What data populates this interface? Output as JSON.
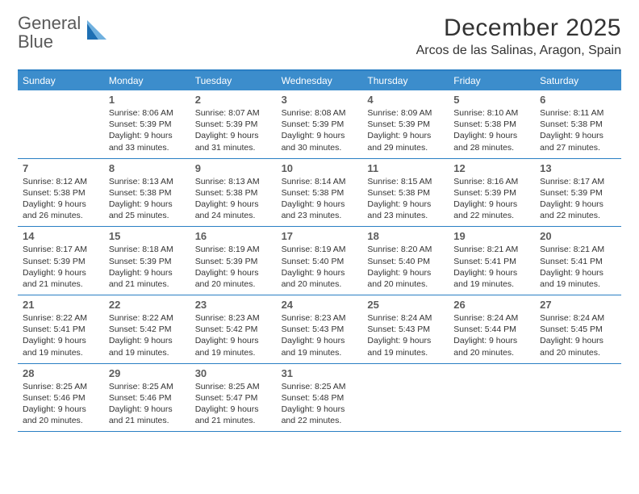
{
  "brand": {
    "word1": "General",
    "word2": "Blue",
    "mark_color_light": "#6fb0df",
    "mark_color_dark": "#1d6fb3"
  },
  "header": {
    "title": "December 2025",
    "location": "Arcos de las Salinas, Aragon, Spain"
  },
  "colors": {
    "header_bar": "#3c8dcc",
    "rule": "#2a7fc4",
    "text": "#333333",
    "daynum": "#5c5c5c",
    "bg": "#ffffff"
  },
  "weekdays": [
    "Sunday",
    "Monday",
    "Tuesday",
    "Wednesday",
    "Thursday",
    "Friday",
    "Saturday"
  ],
  "weeks": [
    [
      {
        "n": "",
        "sunrise": "",
        "sunset": "",
        "daylight": ""
      },
      {
        "n": "1",
        "sunrise": "Sunrise: 8:06 AM",
        "sunset": "Sunset: 5:39 PM",
        "daylight": "Daylight: 9 hours and 33 minutes."
      },
      {
        "n": "2",
        "sunrise": "Sunrise: 8:07 AM",
        "sunset": "Sunset: 5:39 PM",
        "daylight": "Daylight: 9 hours and 31 minutes."
      },
      {
        "n": "3",
        "sunrise": "Sunrise: 8:08 AM",
        "sunset": "Sunset: 5:39 PM",
        "daylight": "Daylight: 9 hours and 30 minutes."
      },
      {
        "n": "4",
        "sunrise": "Sunrise: 8:09 AM",
        "sunset": "Sunset: 5:39 PM",
        "daylight": "Daylight: 9 hours and 29 minutes."
      },
      {
        "n": "5",
        "sunrise": "Sunrise: 8:10 AM",
        "sunset": "Sunset: 5:38 PM",
        "daylight": "Daylight: 9 hours and 28 minutes."
      },
      {
        "n": "6",
        "sunrise": "Sunrise: 8:11 AM",
        "sunset": "Sunset: 5:38 PM",
        "daylight": "Daylight: 9 hours and 27 minutes."
      }
    ],
    [
      {
        "n": "7",
        "sunrise": "Sunrise: 8:12 AM",
        "sunset": "Sunset: 5:38 PM",
        "daylight": "Daylight: 9 hours and 26 minutes."
      },
      {
        "n": "8",
        "sunrise": "Sunrise: 8:13 AM",
        "sunset": "Sunset: 5:38 PM",
        "daylight": "Daylight: 9 hours and 25 minutes."
      },
      {
        "n": "9",
        "sunrise": "Sunrise: 8:13 AM",
        "sunset": "Sunset: 5:38 PM",
        "daylight": "Daylight: 9 hours and 24 minutes."
      },
      {
        "n": "10",
        "sunrise": "Sunrise: 8:14 AM",
        "sunset": "Sunset: 5:38 PM",
        "daylight": "Daylight: 9 hours and 23 minutes."
      },
      {
        "n": "11",
        "sunrise": "Sunrise: 8:15 AM",
        "sunset": "Sunset: 5:38 PM",
        "daylight": "Daylight: 9 hours and 23 minutes."
      },
      {
        "n": "12",
        "sunrise": "Sunrise: 8:16 AM",
        "sunset": "Sunset: 5:39 PM",
        "daylight": "Daylight: 9 hours and 22 minutes."
      },
      {
        "n": "13",
        "sunrise": "Sunrise: 8:17 AM",
        "sunset": "Sunset: 5:39 PM",
        "daylight": "Daylight: 9 hours and 22 minutes."
      }
    ],
    [
      {
        "n": "14",
        "sunrise": "Sunrise: 8:17 AM",
        "sunset": "Sunset: 5:39 PM",
        "daylight": "Daylight: 9 hours and 21 minutes."
      },
      {
        "n": "15",
        "sunrise": "Sunrise: 8:18 AM",
        "sunset": "Sunset: 5:39 PM",
        "daylight": "Daylight: 9 hours and 21 minutes."
      },
      {
        "n": "16",
        "sunrise": "Sunrise: 8:19 AM",
        "sunset": "Sunset: 5:39 PM",
        "daylight": "Daylight: 9 hours and 20 minutes."
      },
      {
        "n": "17",
        "sunrise": "Sunrise: 8:19 AM",
        "sunset": "Sunset: 5:40 PM",
        "daylight": "Daylight: 9 hours and 20 minutes."
      },
      {
        "n": "18",
        "sunrise": "Sunrise: 8:20 AM",
        "sunset": "Sunset: 5:40 PM",
        "daylight": "Daylight: 9 hours and 20 minutes."
      },
      {
        "n": "19",
        "sunrise": "Sunrise: 8:21 AM",
        "sunset": "Sunset: 5:41 PM",
        "daylight": "Daylight: 9 hours and 19 minutes."
      },
      {
        "n": "20",
        "sunrise": "Sunrise: 8:21 AM",
        "sunset": "Sunset: 5:41 PM",
        "daylight": "Daylight: 9 hours and 19 minutes."
      }
    ],
    [
      {
        "n": "21",
        "sunrise": "Sunrise: 8:22 AM",
        "sunset": "Sunset: 5:41 PM",
        "daylight": "Daylight: 9 hours and 19 minutes."
      },
      {
        "n": "22",
        "sunrise": "Sunrise: 8:22 AM",
        "sunset": "Sunset: 5:42 PM",
        "daylight": "Daylight: 9 hours and 19 minutes."
      },
      {
        "n": "23",
        "sunrise": "Sunrise: 8:23 AM",
        "sunset": "Sunset: 5:42 PM",
        "daylight": "Daylight: 9 hours and 19 minutes."
      },
      {
        "n": "24",
        "sunrise": "Sunrise: 8:23 AM",
        "sunset": "Sunset: 5:43 PM",
        "daylight": "Daylight: 9 hours and 19 minutes."
      },
      {
        "n": "25",
        "sunrise": "Sunrise: 8:24 AM",
        "sunset": "Sunset: 5:43 PM",
        "daylight": "Daylight: 9 hours and 19 minutes."
      },
      {
        "n": "26",
        "sunrise": "Sunrise: 8:24 AM",
        "sunset": "Sunset: 5:44 PM",
        "daylight": "Daylight: 9 hours and 20 minutes."
      },
      {
        "n": "27",
        "sunrise": "Sunrise: 8:24 AM",
        "sunset": "Sunset: 5:45 PM",
        "daylight": "Daylight: 9 hours and 20 minutes."
      }
    ],
    [
      {
        "n": "28",
        "sunrise": "Sunrise: 8:25 AM",
        "sunset": "Sunset: 5:46 PM",
        "daylight": "Daylight: 9 hours and 20 minutes."
      },
      {
        "n": "29",
        "sunrise": "Sunrise: 8:25 AM",
        "sunset": "Sunset: 5:46 PM",
        "daylight": "Daylight: 9 hours and 21 minutes."
      },
      {
        "n": "30",
        "sunrise": "Sunrise: 8:25 AM",
        "sunset": "Sunset: 5:47 PM",
        "daylight": "Daylight: 9 hours and 21 minutes."
      },
      {
        "n": "31",
        "sunrise": "Sunrise: 8:25 AM",
        "sunset": "Sunset: 5:48 PM",
        "daylight": "Daylight: 9 hours and 22 minutes."
      },
      {
        "n": "",
        "sunrise": "",
        "sunset": "",
        "daylight": ""
      },
      {
        "n": "",
        "sunrise": "",
        "sunset": "",
        "daylight": ""
      },
      {
        "n": "",
        "sunrise": "",
        "sunset": "",
        "daylight": ""
      }
    ]
  ]
}
